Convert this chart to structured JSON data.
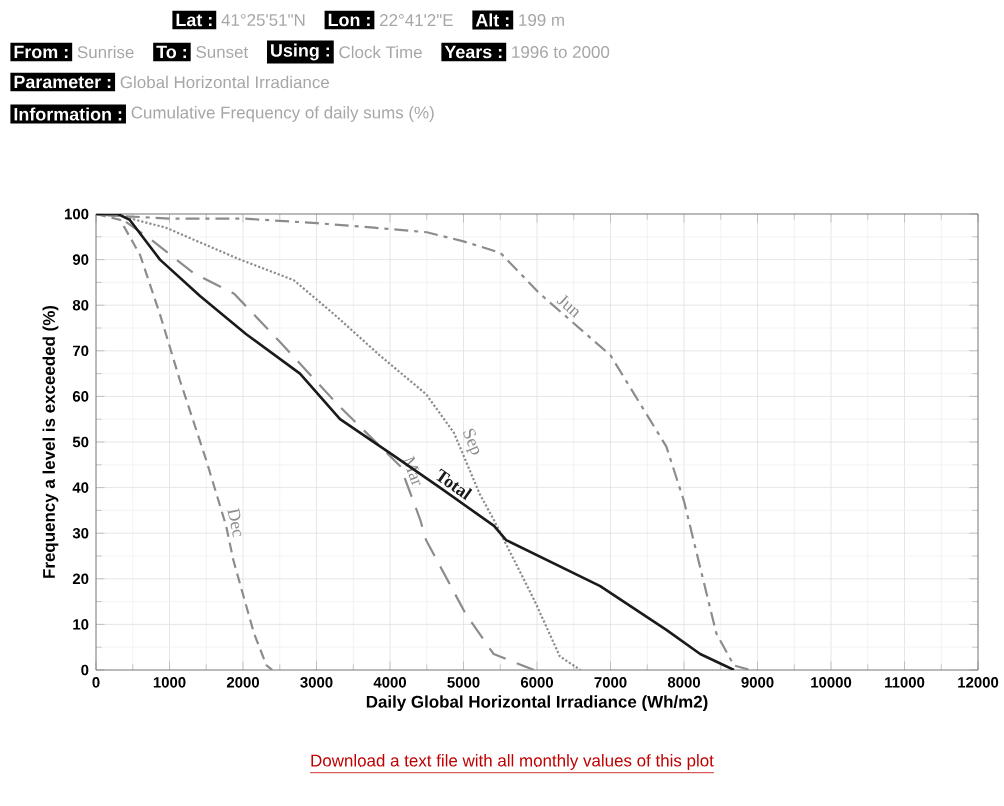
{
  "chart_data": {
    "type": "line",
    "xlabel": "Daily Global Horizontal Irradiance (Wh/m2)",
    "ylabel": "Frequency a level is exceeded (%)",
    "annotations": [
      "Lat :",
      "41°25'51\"N",
      "Lon :",
      "22°41'2\"E",
      "Alt :",
      "199 m",
      "From :",
      "Sunrise",
      "To :",
      "Sunset",
      "Using :",
      "Clock Time",
      "Years :",
      "1996 to 2000",
      "Parameter :",
      "Global Horizontal Irradiance",
      "Information :",
      "Cumulative Frequency of daily sums (%)",
      "Download a text file with all monthly values of this plot"
    ],
    "xlim": [
      0,
      12000
    ],
    "xticks": [
      0,
      1000,
      2000,
      3000,
      4000,
      5000,
      6000,
      7000,
      8000,
      9000,
      10000,
      11000,
      12000
    ],
    "ylim": [
      0,
      100
    ],
    "yticks": [
      0,
      10,
      20,
      30,
      40,
      50,
      60,
      70,
      80,
      90,
      100
    ],
    "grid": true,
    "marker": "none",
    "series": [
      {
        "name": "Jun",
        "color": "#8c8c8c",
        "line_style": "dashdot",
        "x": [
          0,
          400,
          1000,
          2000,
          3000,
          3780,
          4500,
          5000,
          5500,
          6040,
          7000,
          7760,
          8000,
          8440,
          8680,
          8900
        ],
        "values": [
          100,
          99.5,
          99,
          99,
          98,
          97,
          96,
          94,
          91.5,
          82.5,
          69,
          49,
          37,
          8,
          1,
          0
        ]
      },
      {
        "name": "Sep",
        "color": "#8c8c8c",
        "line_style": "dotted",
        "x": [
          0,
          330,
          950,
          1960,
          2690,
          3240,
          3860,
          4490,
          4870,
          5220,
          5410,
          5960,
          6310,
          6590
        ],
        "values": [
          100,
          99.6,
          97,
          90,
          85.5,
          78,
          69,
          60.5,
          52,
          38.6,
          33,
          15.4,
          3,
          0
        ]
      },
      {
        "name": "Mar",
        "color": "#8c8c8c",
        "line_style": "longdash",
        "x": [
          0,
          300,
          780,
          1330,
          1880,
          2500,
          3300,
          4140,
          4410,
          4490,
          5030,
          5410,
          5960
        ],
        "values": [
          100,
          99.5,
          94,
          87,
          82.5,
          72,
          58,
          44.7,
          33,
          28.5,
          12.3,
          3.5,
          0
        ]
      },
      {
        "name": "Dec",
        "color": "#8c8c8c",
        "line_style": "dashed",
        "x": [
          0,
          330,
          600,
          870,
          1140,
          1500,
          1770,
          1870,
          2150,
          2320,
          2400
        ],
        "values": [
          100,
          98.7,
          91,
          78,
          63.6,
          46,
          31.6,
          24,
          8,
          1,
          0
        ]
      },
      {
        "name": "Total",
        "color": "#1a1a1a",
        "line_style": "solid",
        "x": [
          0,
          300,
          460,
          870,
          1415,
          2040,
          2775,
          3320,
          4050,
          4680,
          5415,
          5580,
          6860,
          7760,
          8220,
          8680
        ],
        "values": [
          100,
          100,
          98.7,
          90,
          82,
          73.7,
          65,
          55,
          47,
          40,
          31.6,
          28.5,
          18.4,
          8.8,
          3.5,
          0
        ]
      }
    ]
  }
}
